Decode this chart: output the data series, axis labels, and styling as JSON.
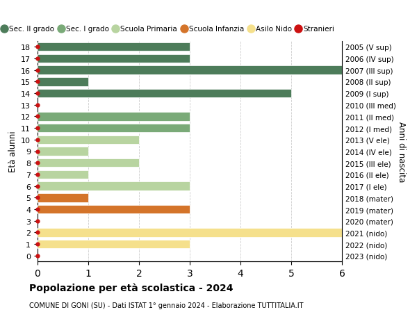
{
  "ages": [
    18,
    17,
    16,
    15,
    14,
    13,
    12,
    11,
    10,
    9,
    8,
    7,
    6,
    5,
    4,
    3,
    2,
    1,
    0
  ],
  "right_labels": [
    "2005 (V sup)",
    "2006 (IV sup)",
    "2007 (III sup)",
    "2008 (II sup)",
    "2009 (I sup)",
    "2010 (III med)",
    "2011 (II med)",
    "2012 (I med)",
    "2013 (V ele)",
    "2014 (IV ele)",
    "2015 (III ele)",
    "2016 (II ele)",
    "2017 (I ele)",
    "2018 (mater)",
    "2019 (mater)",
    "2020 (mater)",
    "2021 (nido)",
    "2022 (nido)",
    "2023 (nido)"
  ],
  "bar_data": [
    {
      "age": 18,
      "value": 3,
      "color": "#4d7c5a"
    },
    {
      "age": 17,
      "value": 3,
      "color": "#4d7c5a"
    },
    {
      "age": 16,
      "value": 6,
      "color": "#4d7c5a"
    },
    {
      "age": 15,
      "value": 1,
      "color": "#4d7c5a"
    },
    {
      "age": 14,
      "value": 5,
      "color": "#4d7c5a"
    },
    {
      "age": 13,
      "value": 0,
      "color": "#4d7c5a"
    },
    {
      "age": 12,
      "value": 3,
      "color": "#7aaa78"
    },
    {
      "age": 11,
      "value": 3,
      "color": "#7aaa78"
    },
    {
      "age": 10,
      "value": 2,
      "color": "#b8d4a0"
    },
    {
      "age": 9,
      "value": 1,
      "color": "#b8d4a0"
    },
    {
      "age": 8,
      "value": 2,
      "color": "#b8d4a0"
    },
    {
      "age": 7,
      "value": 1,
      "color": "#b8d4a0"
    },
    {
      "age": 6,
      "value": 3,
      "color": "#b8d4a0"
    },
    {
      "age": 5,
      "value": 1,
      "color": "#d4742a"
    },
    {
      "age": 4,
      "value": 3,
      "color": "#d4742a"
    },
    {
      "age": 3,
      "value": 0,
      "color": "#d4742a"
    },
    {
      "age": 2,
      "value": 6,
      "color": "#f5e08c"
    },
    {
      "age": 1,
      "value": 3,
      "color": "#f5e08c"
    },
    {
      "age": 0,
      "value": 0,
      "color": "#f5e08c"
    }
  ],
  "stranieri_ages": [
    18,
    17,
    16,
    15,
    14,
    13,
    12,
    11,
    10,
    9,
    8,
    7,
    6,
    5,
    4,
    3,
    2,
    1,
    0
  ],
  "title": "Popolazione per età scolastica - 2024",
  "subtitle": "COMUNE DI GONI (SU) - Dati ISTAT 1° gennaio 2024 - Elaborazione TUTTITALIA.IT",
  "ylabel": "Età alunni",
  "right_ylabel": "Anni di nascita",
  "xlim": [
    0,
    6
  ],
  "xticks": [
    0,
    1,
    2,
    3,
    4,
    5,
    6
  ],
  "legend_items": [
    {
      "label": "Sec. II grado",
      "color": "#4d7c5a",
      "type": "circle"
    },
    {
      "label": "Sec. I grado",
      "color": "#7aaa78",
      "type": "circle"
    },
    {
      "label": "Scuola Primaria",
      "color": "#b8d4a0",
      "type": "circle"
    },
    {
      "label": "Scuola Infanzia",
      "color": "#d4742a",
      "type": "circle"
    },
    {
      "label": "Asilo Nido",
      "color": "#f5e08c",
      "type": "circle"
    },
    {
      "label": "Stranieri",
      "color": "#cc1111",
      "type": "circle"
    }
  ],
  "bar_height": 0.75,
  "background_color": "#ffffff",
  "grid_color": "#cccccc",
  "stranieri_color": "#cc1111"
}
